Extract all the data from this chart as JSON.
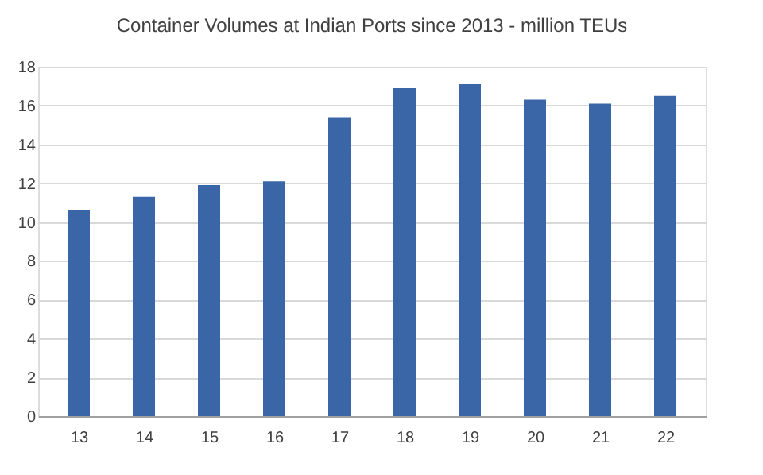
{
  "chart_data": {
    "type": "bar",
    "title": "Container Volumes at Indian Ports since 2013 - million TEUs",
    "categories": [
      "13",
      "14",
      "15",
      "16",
      "17",
      "18",
      "19",
      "20",
      "21",
      "22"
    ],
    "values": [
      10.6,
      11.3,
      11.9,
      12.1,
      15.4,
      16.9,
      17.1,
      16.3,
      16.1,
      16.5
    ],
    "color": "#3a66a8",
    "ylim": [
      0,
      18
    ],
    "yticks": [
      0,
      2,
      4,
      6,
      8,
      10,
      12,
      14,
      16,
      18
    ],
    "grid": "y"
  }
}
